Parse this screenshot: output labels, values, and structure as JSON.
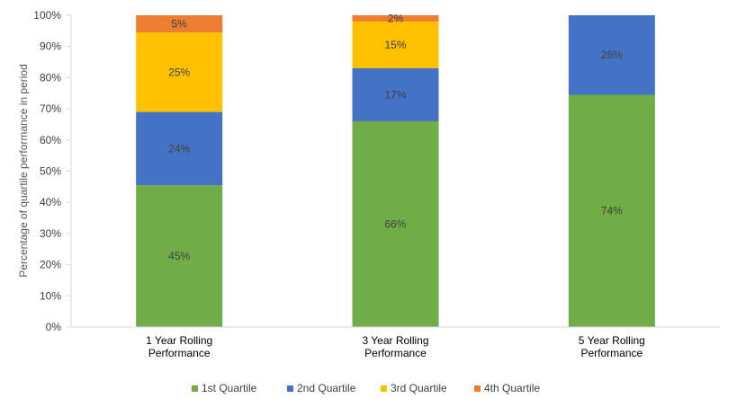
{
  "chart_data": {
    "type": "bar",
    "stacked": true,
    "categories": [
      "1 Year Rolling Performance",
      "3 Year Rolling Performance",
      "5 Year Rolling Performance"
    ],
    "category_lines": [
      [
        "1 Year Rolling",
        "Performance"
      ],
      [
        "3 Year Rolling",
        "Performance"
      ],
      [
        "5 Year Rolling",
        "Performance"
      ]
    ],
    "series": [
      {
        "name": "1st Quartile",
        "color": "#70AD47",
        "values": [
          45.5,
          66,
          74.5
        ],
        "labels": [
          "45%",
          "66%",
          "74%"
        ]
      },
      {
        "name": "2nd Quartile",
        "color": "#4472C4",
        "values": [
          23.5,
          17,
          25.5
        ],
        "labels": [
          "24%",
          "17%",
          "26%"
        ]
      },
      {
        "name": "3rd Quartile",
        "color": "#FFC000",
        "values": [
          25.5,
          15,
          0
        ],
        "labels": [
          "25%",
          "15%",
          ""
        ]
      },
      {
        "name": "4th Quartile",
        "color": "#ED7D31",
        "values": [
          5.5,
          2,
          0
        ],
        "labels": [
          "5%",
          "2%",
          ""
        ]
      }
    ],
    "ylabel": "Percentage of quartile performance in period",
    "ylim": [
      0,
      100
    ],
    "yticks": [
      0,
      10,
      20,
      30,
      40,
      50,
      60,
      70,
      80,
      90,
      100
    ],
    "ytick_labels": [
      "0%",
      "10%",
      "20%",
      "30%",
      "40%",
      "50%",
      "60%",
      "70%",
      "80%",
      "90%",
      "100%"
    ],
    "grid": false,
    "legend_position": "bottom"
  }
}
